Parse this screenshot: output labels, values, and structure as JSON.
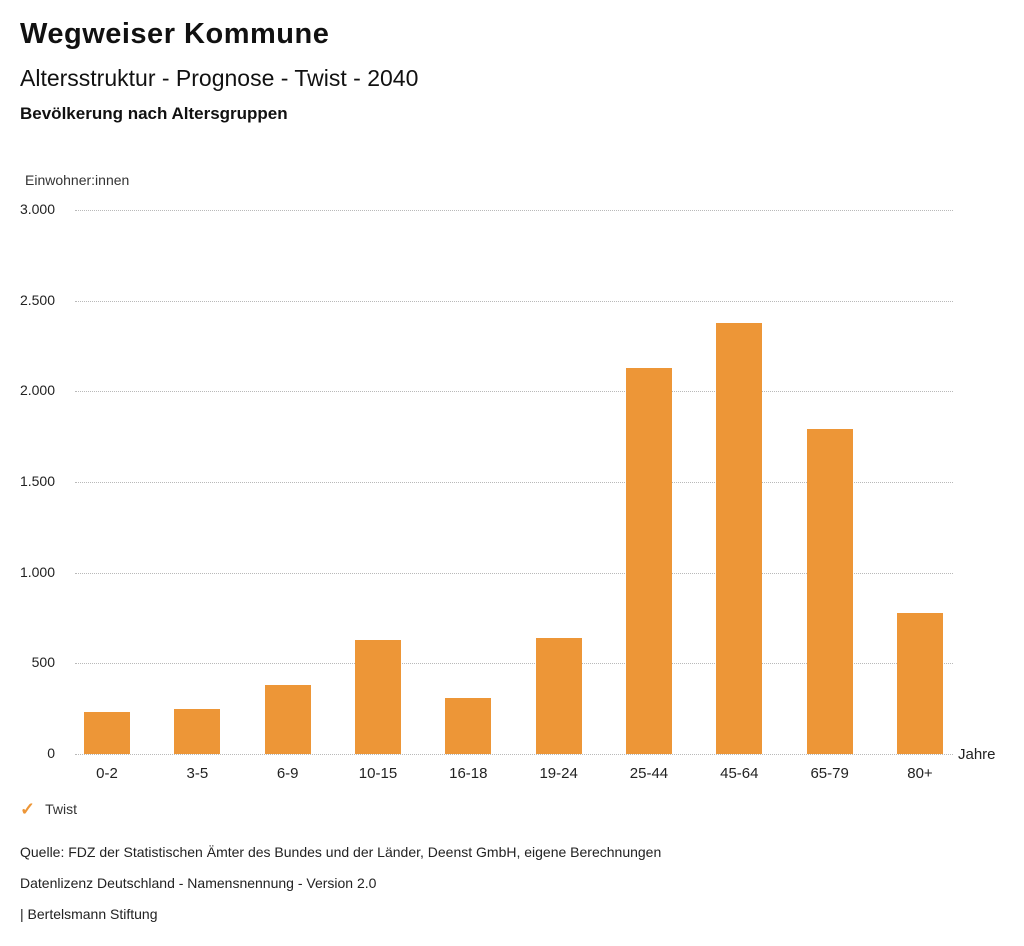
{
  "header": {
    "title": "Wegweiser Kommune",
    "subtitle": "Altersstruktur - Prognose - Twist - 2040",
    "chart_title": "Bevölkerung nach Altersgruppen"
  },
  "chart_data": {
    "type": "bar",
    "title": "Bevölkerung nach Altersgruppen",
    "xlabel": "Jahre",
    "ylabel": "Einwohner:innen",
    "categories": [
      "0-2",
      "3-5",
      "6-9",
      "10-15",
      "16-18",
      "19-24",
      "25-44",
      "45-64",
      "65-79",
      "80+"
    ],
    "series": [
      {
        "name": "Twist",
        "values": [
          230,
          250,
          380,
          630,
          310,
          640,
          2130,
          2375,
          1790,
          775
        ]
      }
    ],
    "ylim": [
      0,
      3000
    ],
    "ytick_step": 500,
    "ytick_labels": [
      "0",
      "500",
      "1.000",
      "1.500",
      "2.000",
      "2.500",
      "3.000"
    ],
    "grid": "horizontal-dotted",
    "legend_position": "bottom-left",
    "bar_color": "#ED9637"
  },
  "legend": {
    "marker": "✓",
    "label": "Twist",
    "marker_color": "#ED9637"
  },
  "footer": {
    "source": "Quelle: FDZ der Statistischen Ämter des Bundes und der Länder, Deenst GmbH, eigene Berechnungen",
    "license": "Datenlizenz Deutschland - Namensnennung - Version 2.0",
    "attribution": "| Bertelsmann Stiftung"
  }
}
